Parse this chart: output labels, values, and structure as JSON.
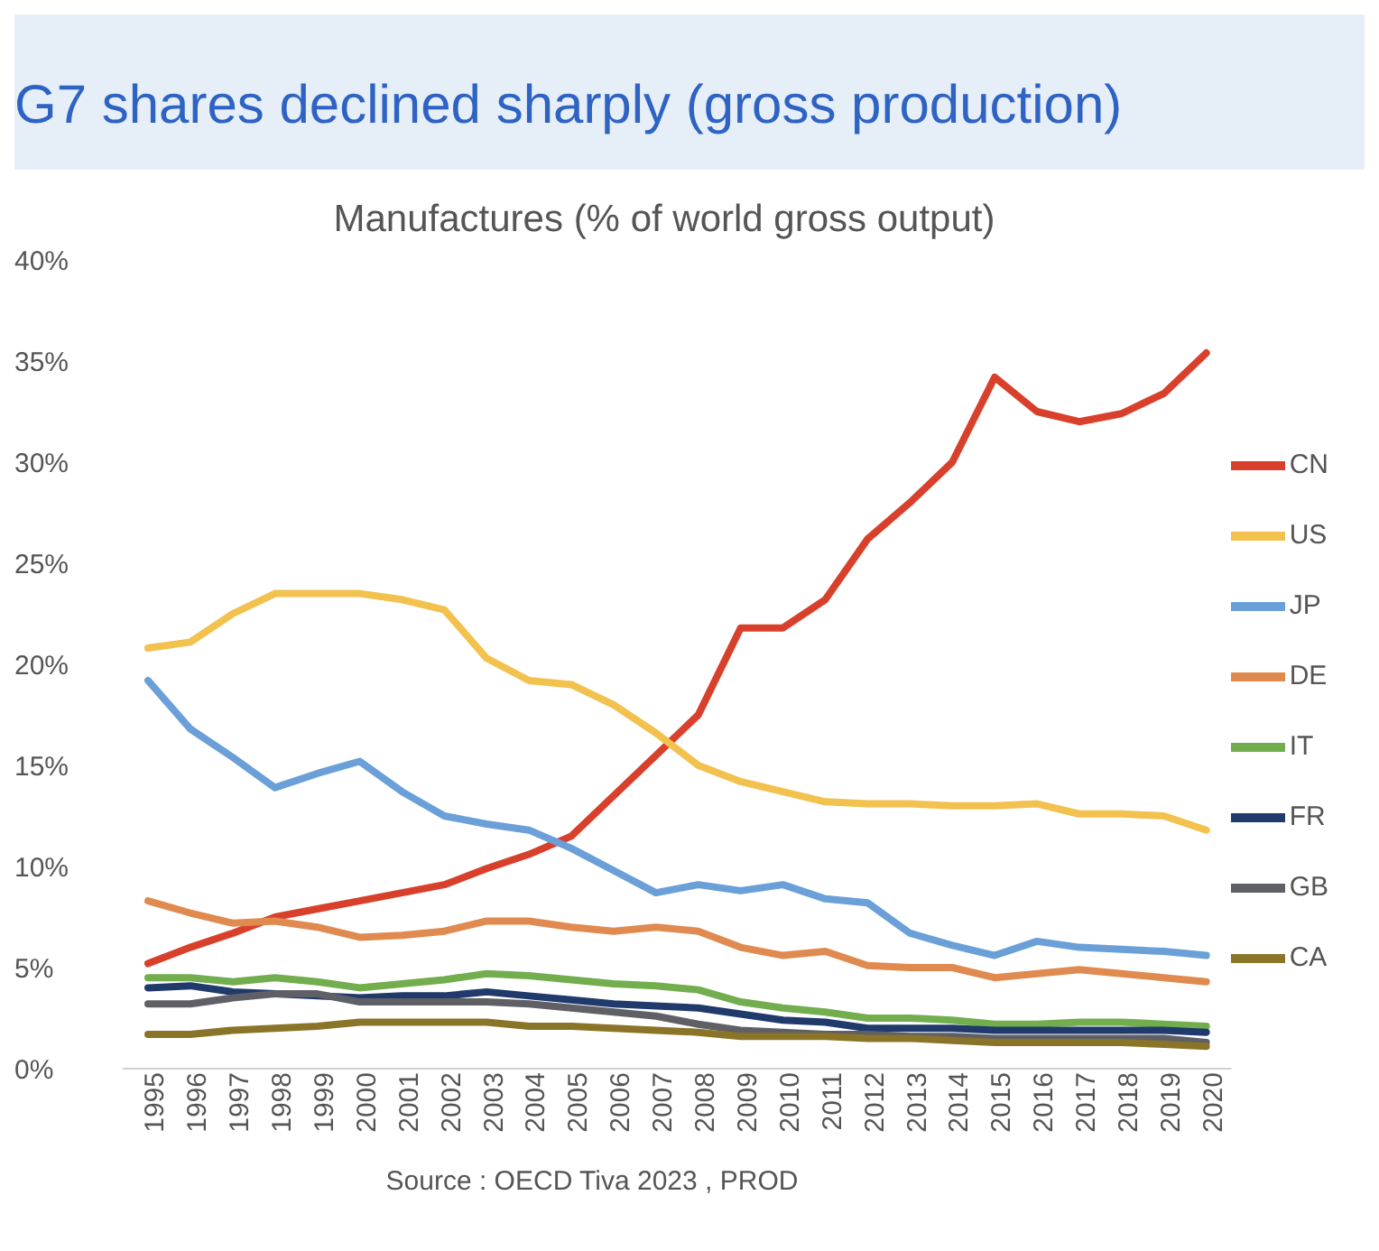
{
  "chart_data": {
    "type": "line",
    "title": "G7 shares declined sharply (gross production)",
    "subtitle": "Manufactures (% of world gross output)",
    "categories": [
      "1995",
      "1996",
      "1997",
      "1998",
      "1999",
      "2000",
      "2001",
      "2002",
      "2003",
      "2004",
      "2005",
      "2006",
      "2007",
      "2008",
      "2009",
      "2010",
      "2011",
      "2012",
      "2013",
      "2014",
      "2015",
      "2016",
      "2017",
      "2018",
      "2019",
      "2020"
    ],
    "series": [
      {
        "name": "CN",
        "color": "#d9402b",
        "values": [
          5.2,
          6.0,
          6.7,
          7.5,
          7.9,
          8.3,
          8.7,
          9.1,
          9.9,
          10.6,
          11.5,
          13.5,
          15.5,
          17.5,
          21.8,
          21.8,
          23.2,
          26.2,
          28.0,
          30.0,
          34.2,
          32.5,
          32.0,
          32.4,
          33.4,
          35.4
        ]
      },
      {
        "name": "US",
        "color": "#f2c14e",
        "values": [
          20.8,
          21.1,
          22.5,
          23.5,
          23.5,
          23.5,
          23.2,
          22.7,
          20.3,
          19.2,
          19.0,
          18.0,
          16.6,
          15.0,
          14.2,
          13.7,
          13.2,
          13.1,
          13.1,
          13.0,
          13.0,
          13.1,
          12.6,
          12.6,
          12.5,
          11.8
        ]
      },
      {
        "name": "JP",
        "color": "#6a9fd8",
        "values": [
          19.2,
          16.8,
          15.4,
          13.9,
          14.6,
          15.2,
          13.7,
          12.5,
          12.1,
          11.8,
          10.9,
          9.8,
          8.7,
          9.1,
          8.8,
          9.1,
          8.4,
          8.2,
          6.7,
          6.1,
          5.6,
          6.3,
          6.0,
          5.9,
          5.8,
          5.6
        ]
      },
      {
        "name": "DE",
        "color": "#e08a4f",
        "values": [
          8.3,
          7.7,
          7.2,
          7.3,
          7.0,
          6.5,
          6.6,
          6.8,
          7.3,
          7.3,
          7.0,
          6.8,
          7.0,
          6.8,
          6.0,
          5.6,
          5.8,
          5.1,
          5.0,
          5.0,
          4.5,
          4.7,
          4.9,
          4.7,
          4.5,
          4.3
        ]
      },
      {
        "name": "IT",
        "color": "#72ad4e",
        "values": [
          4.5,
          4.5,
          4.3,
          4.5,
          4.3,
          4.0,
          4.2,
          4.4,
          4.7,
          4.6,
          4.4,
          4.2,
          4.1,
          3.9,
          3.3,
          3.0,
          2.8,
          2.5,
          2.5,
          2.4,
          2.2,
          2.2,
          2.3,
          2.3,
          2.2,
          2.1
        ]
      },
      {
        "name": "FR",
        "color": "#1f3a6b",
        "values": [
          4.0,
          4.1,
          3.8,
          3.7,
          3.6,
          3.5,
          3.6,
          3.6,
          3.8,
          3.6,
          3.4,
          3.2,
          3.1,
          3.0,
          2.7,
          2.4,
          2.3,
          2.0,
          2.0,
          2.0,
          1.9,
          1.9,
          1.9,
          1.9,
          1.9,
          1.8
        ]
      },
      {
        "name": "GB",
        "color": "#5f5f66",
        "values": [
          3.2,
          3.2,
          3.5,
          3.7,
          3.7,
          3.3,
          3.3,
          3.3,
          3.3,
          3.2,
          3.0,
          2.8,
          2.6,
          2.2,
          1.9,
          1.8,
          1.7,
          1.7,
          1.6,
          1.6,
          1.5,
          1.5,
          1.5,
          1.5,
          1.5,
          1.3
        ]
      },
      {
        "name": "CA",
        "color": "#8a7428",
        "values": [
          1.7,
          1.7,
          1.9,
          2.0,
          2.1,
          2.3,
          2.3,
          2.3,
          2.3,
          2.1,
          2.1,
          2.0,
          1.9,
          1.8,
          1.6,
          1.6,
          1.6,
          1.5,
          1.5,
          1.4,
          1.3,
          1.3,
          1.3,
          1.3,
          1.2,
          1.1
        ]
      }
    ],
    "ylim": [
      0,
      40
    ],
    "yticks": [
      {
        "value": 0,
        "label": "0%"
      },
      {
        "value": 5,
        "label": "5%"
      },
      {
        "value": 10,
        "label": "10%"
      },
      {
        "value": 15,
        "label": "15%"
      },
      {
        "value": 20,
        "label": "20%"
      },
      {
        "value": 25,
        "label": "25%"
      },
      {
        "value": 30,
        "label": "30%"
      },
      {
        "value": 35,
        "label": "35%"
      },
      {
        "value": 40,
        "label": "40%"
      }
    ],
    "grid": false,
    "legend": "right",
    "marker": "none",
    "line_style": "solid",
    "annotations": [
      "Source : OECD Tiva 2023 , PROD"
    ]
  }
}
